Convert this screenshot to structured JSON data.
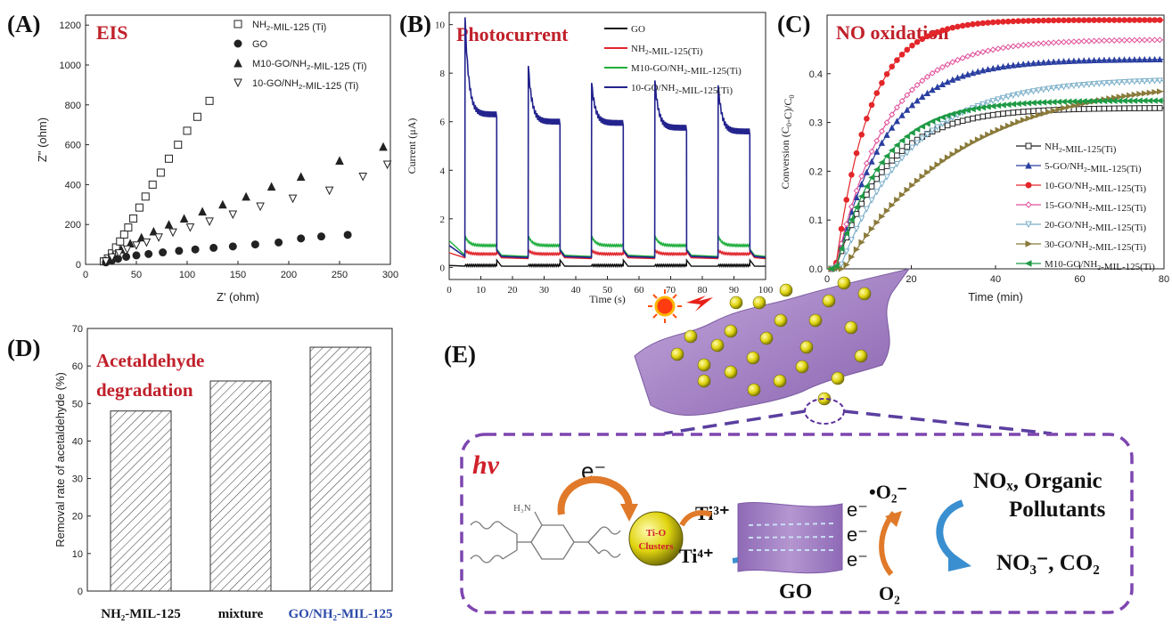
{
  "panels": {
    "a_letter": "(A)",
    "b_letter": "(B)",
    "c_letter": "(C)",
    "d_letter": "(D)",
    "e_letter": "(E)",
    "a_title": "EIS",
    "b_title": "Photocurrent",
    "c_title": "NO oxidation",
    "d_title_line1": "Acetaldehyde",
    "d_title_line2": "degradation"
  },
  "chart_data": [
    {
      "id": "A",
      "type": "scatter",
      "title": "EIS",
      "xlabel": "Z' (ohm)",
      "ylabel": "Z\" (ohm)",
      "xlim": [
        0,
        300
      ],
      "ylim": [
        0,
        1250
      ],
      "xticks": [
        0,
        50,
        100,
        150,
        200,
        250,
        300
      ],
      "yticks": [
        0,
        200,
        400,
        600,
        800,
        1000,
        1200
      ],
      "legend": "top-right",
      "series": [
        {
          "name": "NH2-MIL-125 (Ti)",
          "marker": "square-open",
          "x": [
            18,
            22,
            26,
            30,
            34,
            38,
            42,
            47,
            53,
            59,
            66,
            74,
            82,
            91,
            100,
            110,
            122
          ],
          "y": [
            15,
            30,
            55,
            85,
            115,
            150,
            185,
            230,
            285,
            340,
            400,
            460,
            530,
            600,
            670,
            740,
            820
          ]
        },
        {
          "name": "GO",
          "marker": "circle-filled",
          "x": [
            20,
            26,
            32,
            40,
            50,
            62,
            76,
            92,
            108,
            126,
            145,
            167,
            190,
            212,
            232,
            258
          ],
          "y": [
            10,
            20,
            28,
            38,
            45,
            52,
            60,
            68,
            75,
            83,
            90,
            100,
            110,
            130,
            140,
            148
          ]
        },
        {
          "name": "M10-GO/NH2-MIL-125 (Ti)",
          "marker": "triangle-up-filled",
          "x": [
            20,
            27,
            35,
            44,
            55,
            67,
            82,
            97,
            115,
            135,
            158,
            183,
            212,
            250,
            293
          ],
          "y": [
            20,
            45,
            75,
            105,
            135,
            165,
            200,
            230,
            265,
            300,
            340,
            390,
            440,
            520,
            590
          ]
        },
        {
          "name": "10-GO/NH2-MIL-125 (Ti)",
          "marker": "triangle-down-open",
          "x": [
            20,
            26,
            33,
            41,
            50,
            60,
            72,
            86,
            103,
            122,
            145,
            172,
            204,
            240,
            273,
            297
          ],
          "y": [
            15,
            35,
            55,
            75,
            95,
            110,
            135,
            160,
            185,
            215,
            250,
            290,
            330,
            370,
            440,
            500
          ]
        }
      ]
    },
    {
      "id": "B",
      "type": "line",
      "title": "Photocurrent",
      "xlabel": "Time (s)",
      "ylabel": "Current (μA)",
      "xlim": [
        0,
        100
      ],
      "ylim": [
        -0.5,
        10.5
      ],
      "xticks": [
        0,
        10,
        20,
        30,
        40,
        50,
        60,
        70,
        80,
        90,
        100
      ],
      "yticks": [
        0,
        2,
        4,
        6,
        8,
        10
      ],
      "legend": "top-right",
      "on_intervals": [
        [
          5,
          15
        ],
        [
          25,
          35
        ],
        [
          45,
          55
        ],
        [
          65,
          75
        ],
        [
          85,
          95
        ]
      ],
      "series": [
        {
          "name": "GO",
          "color": "#111111",
          "on_start": 0.08,
          "on_end": 0.08,
          "off": 0.05,
          "start": 0.08
        },
        {
          "name": "NH2-MIL-125(Ti)",
          "color": "#e0262e",
          "on_start": 0.7,
          "on_end": 0.55,
          "off": 0.4,
          "start": 0.6
        },
        {
          "name": "M10-GO/NH2-MIL-125(Ti)",
          "color": "#1fae3c",
          "on_start": 1.3,
          "on_end": 0.9,
          "off": 0.5,
          "start": 1.1
        },
        {
          "name": "10-GO/NH2-MIL-125(Ti)",
          "color": "#23238e",
          "on_start": 10.3,
          "on_end": 6.2,
          "off": 0.45,
          "start": 0.9,
          "peaks": [
            10.3,
            8.3,
            7.6,
            7.7,
            7.5
          ],
          "plateaus": [
            6.3,
            6.0,
            5.95,
            5.75,
            5.6
          ]
        }
      ]
    },
    {
      "id": "C",
      "type": "line",
      "title": "NO oxidation",
      "xlabel": "Time (min)",
      "ylabel": "Conversion (C0-C)/C0",
      "xlim": [
        0,
        80
      ],
      "ylim": [
        0,
        0.52
      ],
      "xticks": [
        0,
        20,
        40,
        60,
        80
      ],
      "yticks": [
        0.0,
        0.1,
        0.2,
        0.3,
        0.4
      ],
      "legend": "bottom-right",
      "series": [
        {
          "name": "NH2-MIL-125(Ti)",
          "color": "#222222",
          "marker": "square-open",
          "plateau": 0.33,
          "tau": 12,
          "delay": 2
        },
        {
          "name": "5-GO/NH2-MIL-125(Ti)",
          "color": "#2a3fa0",
          "marker": "triangle-up-filled",
          "plateau": 0.43,
          "tau": 12,
          "delay": 2
        },
        {
          "name": "10-GO/NH2-MIL-125(Ti)",
          "color": "#e3262a",
          "marker": "circle-filled",
          "plateau": 0.51,
          "tau": 8,
          "delay": 2
        },
        {
          "name": "15-GO/NH2-MIL-125(Ti)",
          "color": "#e0509a",
          "marker": "diamond-open",
          "plateau": 0.47,
          "tau": 12,
          "delay": 2
        },
        {
          "name": "20-GO/NH2-MIL-125(Ti)",
          "color": "#79aec8",
          "marker": "triangle-down-open",
          "plateau": 0.39,
          "tau": 17,
          "delay": 3
        },
        {
          "name": "30-GO/NH2-MIL-125(Ti)",
          "color": "#8a7a3a",
          "marker": "triangle-right-filled",
          "plateau": 0.39,
          "tau": 28,
          "delay": 4
        },
        {
          "name": "M10-GO/NH2-MIL-125(Ti)",
          "color": "#1e9a45",
          "marker": "triangle-left-filled",
          "plateau": 0.345,
          "tau": 11,
          "delay": 2
        }
      ]
    },
    {
      "id": "D",
      "type": "bar",
      "title": "Acetaldehyde degradation",
      "xlabel": "",
      "ylabel": "Removal rate of acetaldehyde (%)",
      "ylim": [
        0,
        70
      ],
      "yticks": [
        0,
        10,
        20,
        30,
        40,
        50,
        60,
        70
      ],
      "categories": [
        "NH₂-MIL-125",
        "mixture",
        "GO/NH₂-MIL-125"
      ],
      "category_colors": [
        "#111111",
        "#111111",
        "#2b4aa8"
      ],
      "values": [
        48,
        56,
        65
      ]
    }
  ],
  "schematic": {
    "electron": "e⁻",
    "hv": "hv",
    "h3n": "H₃N",
    "cluster_line1": "Ti-O",
    "cluster_line2": "Clusters",
    "ti3": "Ti³⁺",
    "ti4": "Ti⁴⁺",
    "go": "GO",
    "superoxide": "•O₂⁻",
    "o2": "O₂",
    "pollutants_line1": "NOₓ, Organic",
    "pollutants_line2": "Pollutants",
    "products": "NO₃⁻, CO₂",
    "colors": {
      "purple": "#6a2ea8",
      "orange": "#e07a2a",
      "blue": "#3a8fd0",
      "red": "#d0202a",
      "sheet": "#a98ac8"
    }
  }
}
